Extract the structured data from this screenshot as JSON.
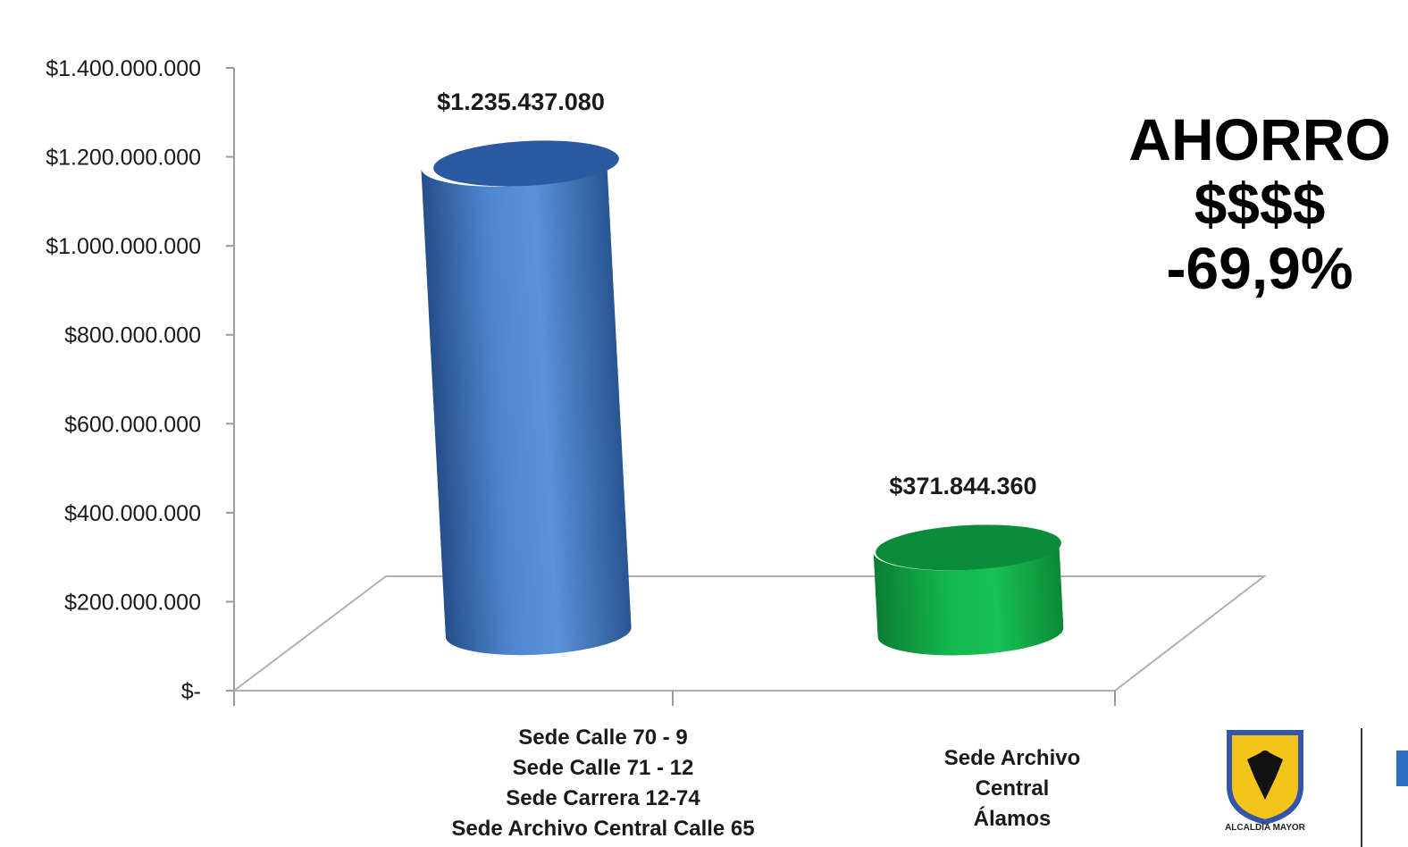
{
  "chart_data": {
    "type": "bar",
    "categories": [
      [
        "Sede Calle 70 - 9",
        "Sede Calle 71 - 12",
        "Sede Carrera 12-74",
        "Sede Archivo Central Calle 65"
      ],
      [
        "Sede Archivo",
        "Central",
        "Álamos"
      ]
    ],
    "values": [
      1235437080,
      371844360
    ],
    "value_labels": [
      "$1.235.437.080",
      "$371.844.360"
    ],
    "colors": [
      "#3f73b8",
      "#13a847"
    ],
    "ylim": [
      0,
      1400000000
    ],
    "yticks": [
      0,
      200000000,
      400000000,
      600000000,
      800000000,
      1000000000,
      1200000000,
      1400000000
    ],
    "ytick_labels": [
      "$-",
      "$200.000.000",
      "$400.000.000",
      "$600.000.000",
      "$800.000.000",
      "$1.000.000.000",
      "$1.200.000.000",
      "$1.400.000.000"
    ],
    "grid": false,
    "title": "",
    "xlabel": "",
    "ylabel": ""
  },
  "annotation": {
    "line1": "AHORRO",
    "line2": "$$$$",
    "line3": "-69,9%"
  },
  "logo": {
    "text": "ALCALDÍA MAYOR"
  }
}
